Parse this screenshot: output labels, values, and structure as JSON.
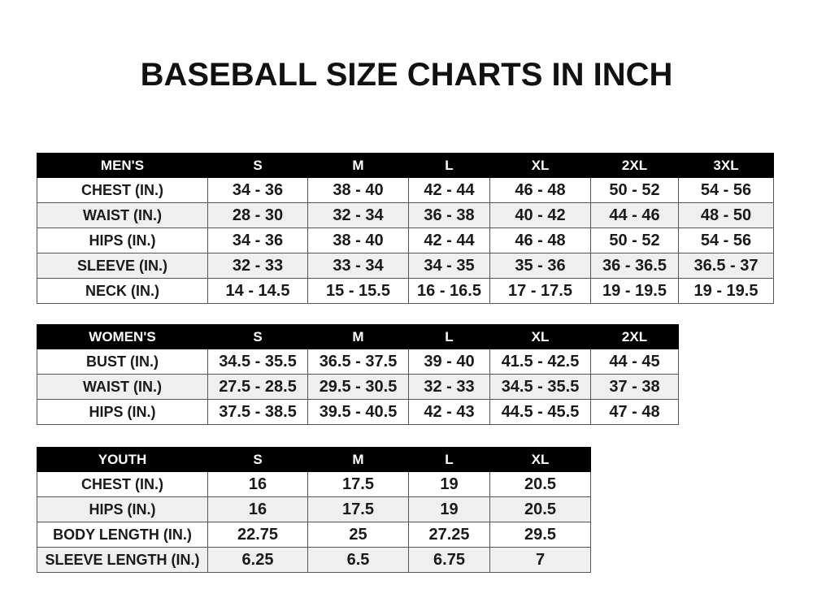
{
  "title": "BASEBALL SIZE CHARTS IN INCH",
  "tables": {
    "men": {
      "header": [
        "MEN'S",
        "S",
        "M",
        "L",
        "XL",
        "2XL",
        "3XL"
      ],
      "rows": [
        [
          "CHEST (IN.)",
          "34 - 36",
          "38 - 40",
          "42 - 44",
          "46 - 48",
          "50 - 52",
          "54 - 56"
        ],
        [
          "WAIST (IN.)",
          "28 - 30",
          "32 - 34",
          "36 - 38",
          "40 - 42",
          "44 - 46",
          "48 - 50"
        ],
        [
          "HIPS (IN.)",
          "34 - 36",
          "38 - 40",
          "42 - 44",
          "46 - 48",
          "50 - 52",
          "54 - 56"
        ],
        [
          "SLEEVE (IN.)",
          "32 - 33",
          "33 - 34",
          "34 - 35",
          "35 - 36",
          "36 - 36.5",
          "36.5 - 37"
        ],
        [
          "NECK (IN.)",
          "14 - 14.5",
          "15 - 15.5",
          "16 - 16.5",
          "17 - 17.5",
          "19 - 19.5",
          "19 - 19.5"
        ]
      ]
    },
    "women": {
      "header": [
        "WOMEN'S",
        "S",
        "M",
        "L",
        "XL",
        "2XL"
      ],
      "rows": [
        [
          "BUST (IN.)",
          "34.5 - 35.5",
          "36.5 - 37.5",
          "39 - 40",
          "41.5 - 42.5",
          "44 - 45"
        ],
        [
          "WAIST (IN.)",
          "27.5 - 28.5",
          "29.5 - 30.5",
          "32 - 33",
          "34.5 - 35.5",
          "37 - 38"
        ],
        [
          "HIPS (IN.)",
          "37.5 - 38.5",
          "39.5 - 40.5",
          "42 - 43",
          "44.5 - 45.5",
          "47 - 48"
        ]
      ]
    },
    "youth": {
      "header": [
        "YOUTH",
        "S",
        "M",
        "L",
        "XL"
      ],
      "rows": [
        [
          "CHEST (IN.)",
          "16",
          "17.5",
          "19",
          "20.5"
        ],
        [
          "HIPS (IN.)",
          "16",
          "17.5",
          "19",
          "20.5"
        ],
        [
          "BODY LENGTH (IN.)",
          "22.75",
          "25",
          "27.25",
          "29.5"
        ],
        [
          "SLEEVE LENGTH (IN.)",
          "6.25",
          "6.5",
          "6.75",
          "7"
        ]
      ]
    }
  }
}
